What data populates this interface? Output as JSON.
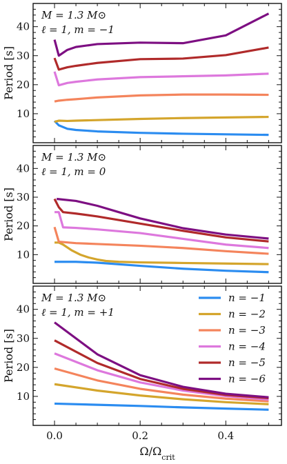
{
  "chart_data": [
    {
      "type": "line",
      "annotation": [
        "M = 1.3 M⊙",
        "ℓ = 1,  m = −1"
      ],
      "xlabel": "",
      "ylabel": "Period [s]",
      "xlim": [
        -0.05,
        0.53
      ],
      "ylim": [
        0,
        48
      ],
      "yticks": [
        "10",
        "20",
        "30",
        "40"
      ],
      "xtick_labels": false,
      "series": [
        {
          "color": "#2b8cf0",
          "x": [
            0,
            0.01,
            0.03,
            0.05,
            0.1,
            0.2,
            0.3,
            0.4,
            0.5
          ],
          "y": [
            7.5,
            6.0,
            4.8,
            4.4,
            3.9,
            3.4,
            3.1,
            2.9,
            2.7
          ]
        },
        {
          "color": "#d4a52c",
          "x": [
            0,
            0.01,
            0.03,
            0.05,
            0.1,
            0.2,
            0.3,
            0.4,
            0.5
          ],
          "y": [
            7.2,
            7.6,
            7.5,
            7.6,
            7.8,
            8.2,
            8.5,
            8.7,
            8.9
          ]
        },
        {
          "color": "#f4845c",
          "x": [
            0,
            0.01,
            0.03,
            0.05,
            0.1,
            0.2,
            0.3,
            0.4,
            0.5
          ],
          "y": [
            14.2,
            14.5,
            14.8,
            15.0,
            15.6,
            16.3,
            16.6,
            16.6,
            16.5
          ]
        },
        {
          "color": "#dd78dd",
          "x": [
            0,
            0.01,
            0.03,
            0.05,
            0.1,
            0.2,
            0.3,
            0.4,
            0.5
          ],
          "y": [
            24.5,
            19.8,
            20.6,
            21.0,
            21.8,
            22.6,
            22.9,
            23.2,
            23.8
          ]
        },
        {
          "color": "#b02a2a",
          "x": [
            0,
            0.01,
            0.03,
            0.05,
            0.1,
            0.2,
            0.3,
            0.4,
            0.5
          ],
          "y": [
            29.2,
            25.2,
            26.0,
            26.5,
            27.5,
            28.8,
            29.0,
            30.2,
            32.8
          ]
        },
        {
          "color": "#7d0f82",
          "x": [
            0,
            0.01,
            0.03,
            0.05,
            0.1,
            0.2,
            0.3,
            0.4,
            0.5
          ],
          "y": [
            35.5,
            30.0,
            32.0,
            33.0,
            34.0,
            34.5,
            34.3,
            37.0,
            44.5
          ]
        }
      ]
    },
    {
      "type": "line",
      "annotation": [
        "M = 1.3 M⊙",
        "ℓ = 1,  m = 0"
      ],
      "xlabel": "",
      "ylabel": "Period [s]",
      "xlim": [
        -0.05,
        0.53
      ],
      "ylim": [
        0,
        48
      ],
      "yticks": [
        "10",
        "20",
        "30",
        "40"
      ],
      "xtick_labels": false,
      "series": [
        {
          "color": "#2b8cf0",
          "x": [
            0,
            0.05,
            0.1,
            0.2,
            0.3,
            0.4,
            0.5
          ],
          "y": [
            7.5,
            7.5,
            7.2,
            6.1,
            5.1,
            4.4,
            3.9
          ]
        },
        {
          "color": "#d4a52c",
          "x": [
            0,
            0.01,
            0.02,
            0.04,
            0.06,
            0.08,
            0.1,
            0.12,
            0.15,
            0.2,
            0.3,
            0.4,
            0.5
          ],
          "y": [
            14.2,
            14.2,
            13.5,
            11.5,
            10.0,
            9.0,
            8.3,
            7.8,
            7.5,
            7.3,
            7.1,
            6.9,
            6.7
          ]
        },
        {
          "color": "#f4845c",
          "x": [
            0,
            0.01,
            0.05,
            0.1,
            0.2,
            0.3,
            0.4,
            0.5
          ],
          "y": [
            19.6,
            14.5,
            14.0,
            13.7,
            13.1,
            12.3,
            11.2,
            10.3
          ]
        },
        {
          "color": "#dd78dd",
          "x": [
            0,
            0.01,
            0.02,
            0.05,
            0.1,
            0.2,
            0.3,
            0.4,
            0.5
          ],
          "y": [
            24.8,
            24.8,
            19.5,
            19.3,
            18.8,
            17.5,
            15.5,
            13.5,
            12.3
          ]
        },
        {
          "color": "#b02a2a",
          "x": [
            0,
            0.01,
            0.02,
            0.05,
            0.1,
            0.2,
            0.3,
            0.4,
            0.5
          ],
          "y": [
            29.4,
            26.5,
            24.8,
            24.3,
            23.3,
            20.8,
            18.3,
            16.0,
            14.6
          ]
        },
        {
          "color": "#7d0f82",
          "x": [
            0.005,
            0.05,
            0.1,
            0.15,
            0.2,
            0.3,
            0.4,
            0.5
          ],
          "y": [
            29.4,
            28.7,
            27.0,
            24.8,
            22.6,
            19.2,
            17.0,
            15.6
          ]
        }
      ]
    },
    {
      "type": "line",
      "annotation": [
        "M = 1.3 M⊙",
        "ℓ = 1,  m = +1"
      ],
      "xlabel": "Ω/Ωcrit",
      "ylabel": "Period [s]",
      "xlim": [
        -0.05,
        0.53
      ],
      "ylim": [
        0,
        48
      ],
      "yticks": [
        "10",
        "20",
        "30",
        "40"
      ],
      "xticks": [
        "0.0",
        "0.2",
        "0.4"
      ],
      "xtick_labels": true,
      "legend": {
        "placement": "top-right",
        "entries": [
          "n = −1",
          "n = −2",
          "n = −3",
          "n = −4",
          "n = −5",
          "n = −6"
        ]
      },
      "series": [
        {
          "name": "n = −1",
          "color": "#2b8cf0",
          "x": [
            0,
            0.1,
            0.2,
            0.3,
            0.4,
            0.5
          ],
          "y": [
            7.5,
            7.1,
            6.7,
            6.2,
            5.8,
            5.4
          ]
        },
        {
          "name": "n = −2",
          "color": "#d4a52c",
          "x": [
            0,
            0.1,
            0.2,
            0.3,
            0.4,
            0.5
          ],
          "y": [
            14.2,
            12.0,
            10.3,
            9.0,
            8.0,
            7.3
          ]
        },
        {
          "name": "n = −3",
          "color": "#f4845c",
          "x": [
            0,
            0.1,
            0.2,
            0.3,
            0.4,
            0.5
          ],
          "y": [
            19.6,
            15.5,
            12.6,
            10.6,
            9.2,
            8.3
          ]
        },
        {
          "name": "n = −4",
          "color": "#dd78dd",
          "x": [
            0,
            0.1,
            0.2,
            0.3,
            0.4,
            0.5
          ],
          "y": [
            24.8,
            19.0,
            14.8,
            12.0,
            10.1,
            8.9
          ]
        },
        {
          "name": "n = −5",
          "color": "#b02a2a",
          "x": [
            0,
            0.1,
            0.2,
            0.3,
            0.4,
            0.5
          ],
          "y": [
            29.3,
            21.5,
            16.0,
            12.6,
            10.5,
            9.4
          ]
        },
        {
          "name": "n = −6",
          "color": "#7d0f82",
          "x": [
            0,
            0.1,
            0.2,
            0.3,
            0.4,
            0.5
          ],
          "y": [
            35.5,
            24.5,
            17.3,
            13.3,
            10.9,
            9.7
          ]
        }
      ]
    }
  ]
}
